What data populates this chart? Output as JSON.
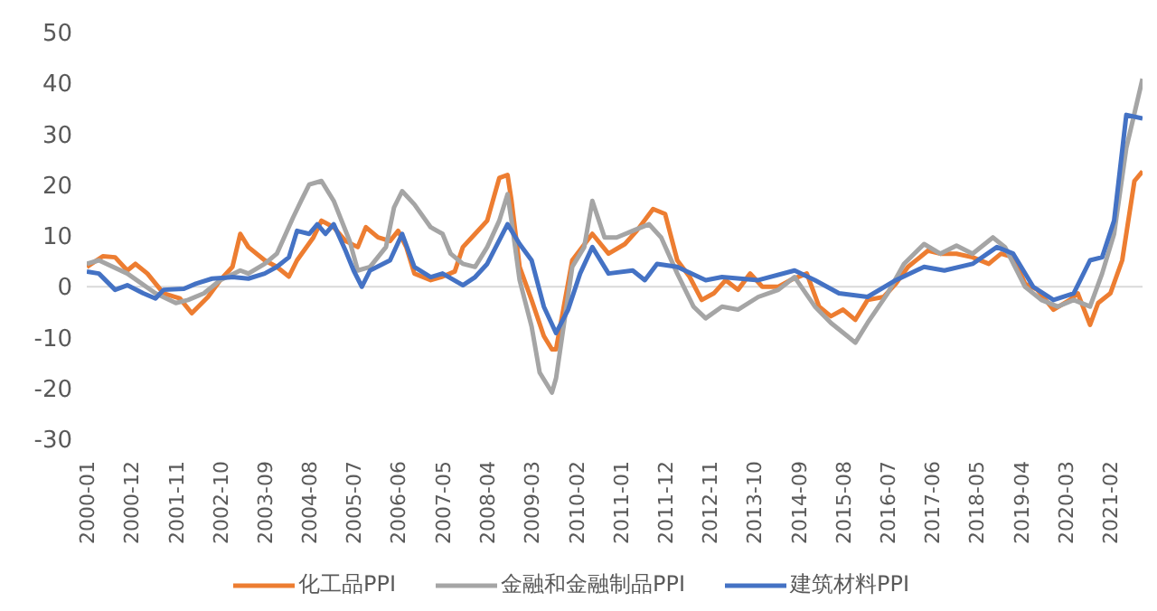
{
  "chart_data": {
    "type": "line",
    "xlim": [
      "2000-01",
      "2021-10"
    ],
    "xticks": [
      "2000-01",
      "2000-12",
      "2001-11",
      "2002-10",
      "2003-09",
      "2004-08",
      "2005-07",
      "2006-06",
      "2007-05",
      "2008-04",
      "2009-03",
      "2010-02",
      "2011-01",
      "2011-12",
      "2012-11",
      "2013-10",
      "2014-09",
      "2015-08",
      "2016-07",
      "2017-06",
      "2018-05",
      "2019-04",
      "2020-03",
      "2021-02"
    ],
    "ylim": [
      -30,
      50
    ],
    "yticks": [
      -30,
      -20,
      -10,
      0,
      10,
      20,
      30,
      40,
      50
    ],
    "grid": false,
    "legend": "bottom",
    "ref_lines": [
      {
        "axis": "y",
        "value": 0,
        "color": "#d9d9d9"
      }
    ],
    "series": [
      {
        "name": "化工品PPI",
        "color": "#ed7d31",
        "x": [
          "2000-01",
          "2000-05",
          "2000-08",
          "2000-11",
          "2001-01",
          "2001-04",
          "2001-08",
          "2001-12",
          "2002-03",
          "2002-07",
          "2002-10",
          "2003-01",
          "2003-03",
          "2003-05",
          "2003-09",
          "2003-12",
          "2004-03",
          "2004-05",
          "2004-09",
          "2004-11",
          "2005-02",
          "2005-05",
          "2005-08",
          "2005-10",
          "2006-01",
          "2006-04",
          "2006-06",
          "2006-08",
          "2006-10",
          "2007-02",
          "2007-05",
          "2007-08",
          "2007-10",
          "2008-01",
          "2008-04",
          "2008-07",
          "2008-09",
          "2008-10",
          "2008-12",
          "2009-03",
          "2009-06",
          "2009-08",
          "2009-09",
          "2010-01",
          "2010-06",
          "2010-10",
          "2011-02",
          "2011-05",
          "2011-09",
          "2011-12",
          "2012-03",
          "2012-06",
          "2012-09",
          "2012-12",
          "2013-03",
          "2013-06",
          "2013-09",
          "2013-12",
          "2014-04",
          "2014-07",
          "2014-11",
          "2015-02",
          "2015-05",
          "2015-08",
          "2015-11",
          "2016-02",
          "2016-06",
          "2016-09",
          "2016-12",
          "2017-05",
          "2017-08",
          "2017-12",
          "2018-04",
          "2018-08",
          "2018-11",
          "2019-02",
          "2019-05",
          "2019-08",
          "2019-12",
          "2020-04",
          "2020-06",
          "2020-09",
          "2020-11",
          "2021-02",
          "2021-05",
          "2021-08",
          "2021-10"
        ],
        "values": [
          3.9,
          6,
          5.8,
          3.2,
          4.5,
          2.6,
          -1.3,
          -2.3,
          -5.2,
          -2,
          1.3,
          3.9,
          10.4,
          7.8,
          5.2,
          3.9,
          2,
          5.2,
          9.7,
          13,
          11.7,
          9,
          7.8,
          11.7,
          9.7,
          9,
          11,
          7.8,
          2.6,
          1.3,
          2,
          3,
          7.8,
          10.4,
          13,
          21.4,
          22,
          16.9,
          3.9,
          -2.6,
          -9.7,
          -12.3,
          -12.3,
          5.2,
          10.4,
          6.5,
          8.4,
          11,
          15.3,
          14.3,
          5.2,
          2,
          -2.6,
          -1.3,
          1.3,
          -0.6,
          2.6,
          0,
          0,
          1.3,
          2.6,
          -3.9,
          -5.8,
          -4.5,
          -6.5,
          -2.6,
          -2,
          0.6,
          3.9,
          7.1,
          6.5,
          6.5,
          5.8,
          4.5,
          6.5,
          5.8,
          0.6,
          -0.6,
          -4.5,
          -2.6,
          -1.3,
          -7.5,
          -3.2,
          -1.3,
          5.2,
          20.8,
          22.7
        ]
      },
      {
        "name": "金融和金融制品PPI",
        "color": "#a5a5a5",
        "x": [
          "2000-01",
          "2000-04",
          "2000-11",
          "2001-06",
          "2001-11",
          "2002-02",
          "2002-06",
          "2002-10",
          "2003-03",
          "2003-05",
          "2003-09",
          "2003-12",
          "2004-04",
          "2004-06",
          "2004-08",
          "2004-11",
          "2005-02",
          "2005-06",
          "2005-08",
          "2005-11",
          "2006-03",
          "2006-05",
          "2006-07",
          "2006-10",
          "2007-02",
          "2007-05",
          "2007-07",
          "2007-10",
          "2008-01",
          "2008-04",
          "2008-07",
          "2008-09",
          "2008-10",
          "2008-12",
          "2009-03",
          "2009-05",
          "2009-08",
          "2009-09",
          "2010-01",
          "2010-04",
          "2010-06",
          "2010-09",
          "2010-12",
          "2011-04",
          "2011-08",
          "2011-11",
          "2012-03",
          "2012-07",
          "2012-10",
          "2013-02",
          "2013-06",
          "2013-11",
          "2014-04",
          "2014-08",
          "2015-01",
          "2015-05",
          "2015-09",
          "2015-11",
          "2016-02",
          "2016-07",
          "2016-11",
          "2017-04",
          "2017-08",
          "2017-12",
          "2018-04",
          "2018-09",
          "2018-12",
          "2019-05",
          "2019-09",
          "2020-01",
          "2020-05",
          "2020-09",
          "2020-12",
          "2021-03",
          "2021-06",
          "2021-10"
        ],
        "values": [
          4.5,
          5.2,
          2.6,
          -1.3,
          -3.2,
          -2.6,
          -1.3,
          1.3,
          3.2,
          2.6,
          4.5,
          6.5,
          13.6,
          16.9,
          20.1,
          20.8,
          16.9,
          9,
          3.2,
          3.9,
          7.8,
          15.6,
          18.8,
          16.2,
          11.7,
          10.4,
          6.5,
          4.5,
          3.9,
          7.8,
          13,
          18.2,
          13,
          1.3,
          -7.8,
          -16.9,
          -20.8,
          -18,
          3.9,
          7.8,
          16.9,
          9.7,
          9.7,
          11,
          12.3,
          9.7,
          2.6,
          -3.9,
          -6.2,
          -3.9,
          -4.5,
          -2,
          -0.6,
          1.9,
          -3.9,
          -7.1,
          -9.7,
          -11,
          -7.1,
          -1.3,
          4.5,
          8.4,
          6.5,
          8.1,
          6.5,
          9.7,
          7.8,
          0,
          -2.6,
          -3.9,
          -2.6,
          -3.9,
          2.6,
          10.4,
          27.3,
          40.9
        ]
      },
      {
        "name": "建筑材料PPI",
        "color": "#4472c4",
        "x": [
          "2000-01",
          "2000-04",
          "2000-08",
          "2000-11",
          "2001-03",
          "2001-06",
          "2001-08",
          "2002-01",
          "2002-04",
          "2002-08",
          "2003-01",
          "2003-05",
          "2003-09",
          "2003-12",
          "2004-03",
          "2004-05",
          "2004-08",
          "2004-10",
          "2004-12",
          "2005-02",
          "2005-05",
          "2005-07",
          "2005-09",
          "2005-11",
          "2006-04",
          "2006-07",
          "2006-10",
          "2007-02",
          "2007-05",
          "2007-10",
          "2008-01",
          "2008-04",
          "2008-09",
          "2008-12",
          "2009-03",
          "2009-06",
          "2009-09",
          "2009-12",
          "2010-03",
          "2010-06",
          "2010-10",
          "2011-04",
          "2011-07",
          "2011-10",
          "2012-03",
          "2012-10",
          "2013-02",
          "2013-11",
          "2014-08",
          "2015-01",
          "2015-07",
          "2016-02",
          "2016-09",
          "2017-04",
          "2017-09",
          "2018-04",
          "2018-10",
          "2019-02",
          "2019-07",
          "2019-12",
          "2020-05",
          "2020-09",
          "2020-12",
          "2021-03",
          "2021-06",
          "2021-10"
        ],
        "values": [
          3,
          2.6,
          -0.6,
          0.3,
          -1.3,
          -2.3,
          -0.6,
          -0.4,
          0.6,
          1.6,
          1.9,
          1.6,
          2.6,
          3.9,
          5.8,
          11,
          10.4,
          12.3,
          10.4,
          12.3,
          7.1,
          3.2,
          0,
          3.2,
          5.2,
          10.4,
          3.9,
          1.9,
          2.6,
          0.3,
          1.9,
          4.5,
          12.3,
          8.4,
          5.2,
          -3.9,
          -9.1,
          -4.5,
          2.6,
          7.8,
          2.6,
          3.2,
          1.3,
          4.5,
          3.9,
          1.3,
          1.9,
          1.3,
          3.2,
          1.3,
          -1.3,
          -2,
          1.3,
          3.9,
          3.2,
          4.5,
          7.8,
          6.5,
          0,
          -2.6,
          -1.3,
          5.2,
          5.8,
          13,
          33.8,
          33.1
        ]
      }
    ]
  }
}
